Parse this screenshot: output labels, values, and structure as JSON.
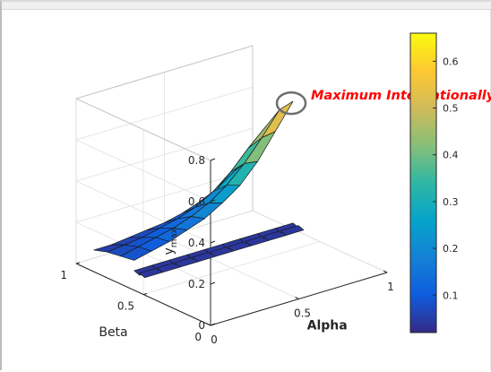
{
  "chart_data": {
    "type": "surface",
    "xlabel": "Alpha",
    "ylabel": "Beta",
    "zlabel": "y",
    "zlabel_sub": "max",
    "xlim": [
      0,
      1
    ],
    "ylim": [
      0,
      1
    ],
    "zlim": [
      0,
      0.8
    ],
    "x_ticks": [
      {
        "v": 0,
        "label": "0"
      },
      {
        "v": 0.5,
        "label": "0.5"
      },
      {
        "v": 1,
        "label": "1"
      }
    ],
    "y_ticks": [
      {
        "v": 0,
        "label": "0"
      },
      {
        "v": 0.5,
        "label": "0.5"
      },
      {
        "v": 1,
        "label": "1"
      }
    ],
    "z_ticks": [
      {
        "v": 0,
        "label": "0"
      },
      {
        "v": 0.2,
        "label": "0.2"
      },
      {
        "v": 0.4,
        "label": "0.4"
      },
      {
        "v": 0.6,
        "label": "0.6"
      },
      {
        "v": 0.8,
        "label": "0.8"
      }
    ],
    "grid": true,
    "colorbar": {
      "limits": [
        0.02,
        0.66
      ],
      "ticks": [
        {
          "v": 0.1,
          "label": "0.1"
        },
        {
          "v": 0.2,
          "label": "0.2"
        },
        {
          "v": 0.3,
          "label": "0.3"
        },
        {
          "v": 0.4,
          "label": "0.4"
        },
        {
          "v": 0.5,
          "label": "0.5"
        },
        {
          "v": 0.6,
          "label": "0.6"
        }
      ],
      "colormap": "parula",
      "colors": [
        "#352a87",
        "#0f5cdd",
        "#1481d6",
        "#06a4ca",
        "#2eb7a4",
        "#87bf77",
        "#d1bb59",
        "#fec832",
        "#f9fb0e"
      ]
    },
    "surface": {
      "alpha": [
        0.1,
        0.2,
        0.3,
        0.4,
        0.5,
        0.6,
        0.7,
        0.8,
        0.9,
        1.0
      ],
      "beta": [
        1.0,
        0.9,
        0.8,
        0.7
      ],
      "z": [
        [
          0.04,
          0.04,
          0.05,
          0.06,
          0.07,
          0.09,
          0.12,
          0.16,
          0.22,
          0.26
        ],
        [
          0.06,
          0.07,
          0.08,
          0.1,
          0.12,
          0.15,
          0.2,
          0.27,
          0.36,
          0.44
        ],
        [
          0.07,
          0.09,
          0.11,
          0.13,
          0.16,
          0.2,
          0.26,
          0.34,
          0.44,
          0.55
        ],
        [
          0.08,
          0.1,
          0.12,
          0.15,
          0.18,
          0.23,
          0.29,
          0.38,
          0.5,
          0.62
        ]
      ],
      "dropoff_beta": 0.62,
      "dropoff_z": 0.0
    },
    "annotation": {
      "text": "Maximum Internationally",
      "color": "#ff0000"
    }
  }
}
